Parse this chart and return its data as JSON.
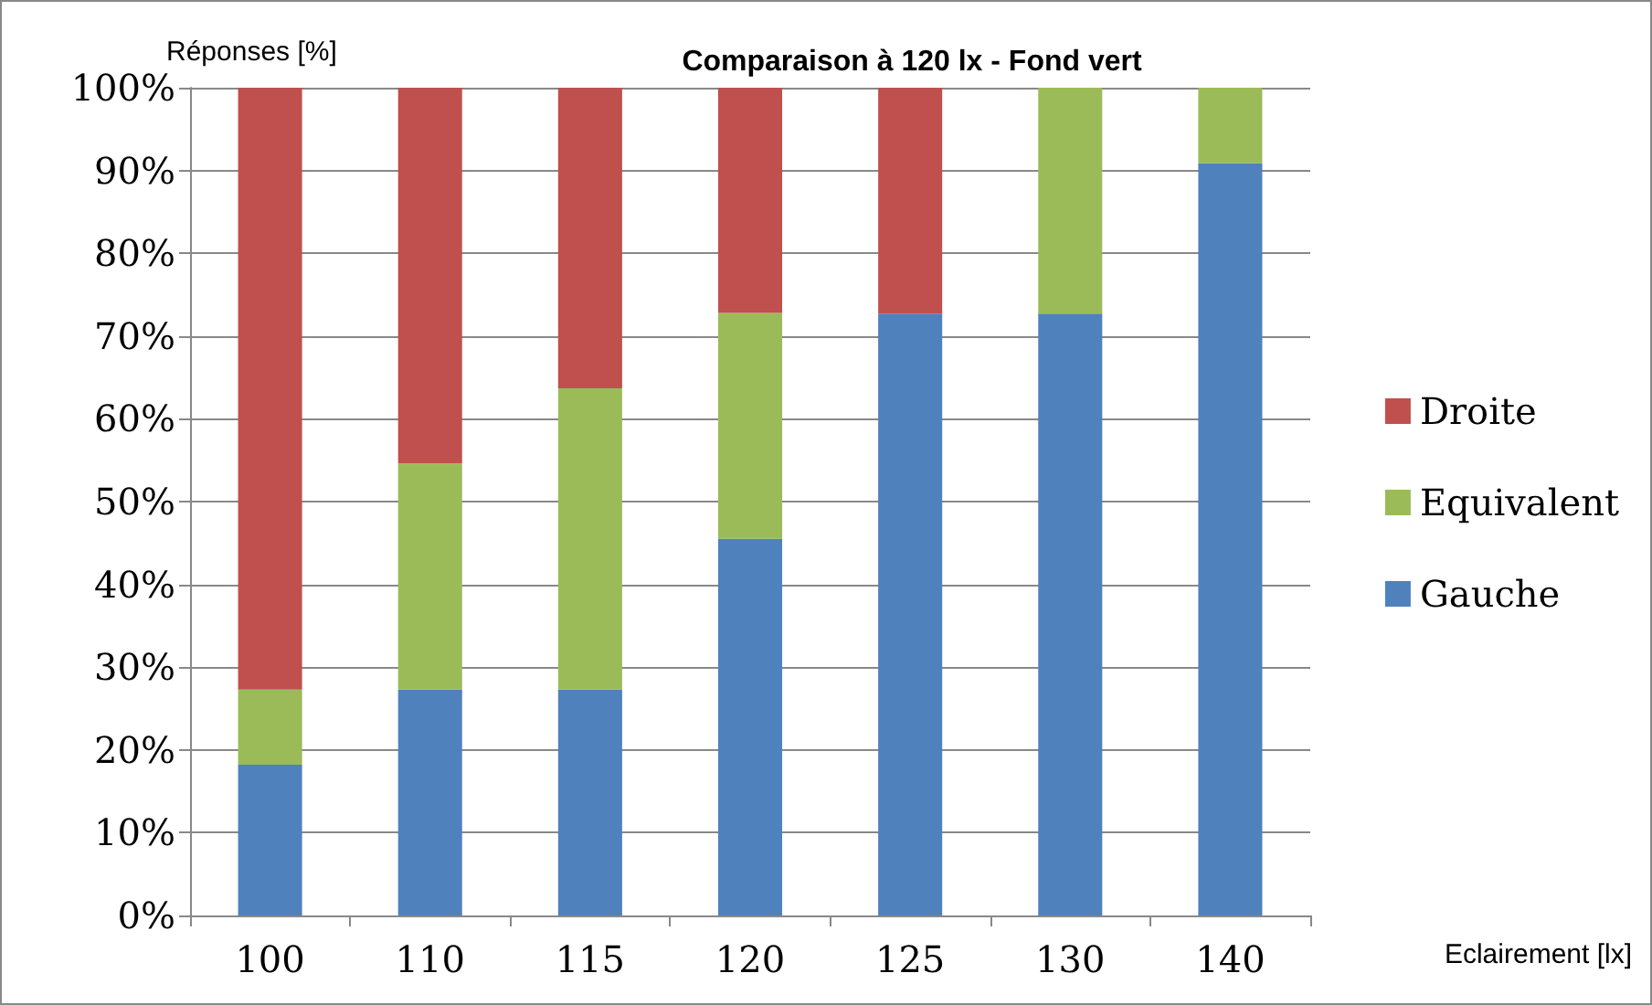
{
  "chart_data": {
    "type": "bar",
    "title": "Comparaison à 120 lx - Fond vert",
    "xlabel": "Eclairement [lx]",
    "ylabel": "Réponses [%]",
    "categories": [
      "100",
      "110",
      "115",
      "120",
      "125",
      "130",
      "140"
    ],
    "stacked": true,
    "series": [
      {
        "name": "Gauche",
        "color": "#4f81bd",
        "values": [
          18.2,
          27.3,
          27.3,
          45.5,
          72.7,
          72.7,
          90.9
        ]
      },
      {
        "name": "Equivalent",
        "color": "#9bbb59",
        "values": [
          9.1,
          27.3,
          36.4,
          27.3,
          0,
          27.3,
          9.1
        ]
      },
      {
        "name": "Droite",
        "color": "#c0504d",
        "values": [
          72.7,
          45.5,
          36.4,
          27.3,
          27.3,
          0,
          0
        ]
      }
    ],
    "ylim": [
      0,
      100
    ],
    "yticks": [
      {
        "value": 0,
        "label": "0%"
      },
      {
        "value": 10,
        "label": "10%"
      },
      {
        "value": 20,
        "label": "20%"
      },
      {
        "value": 30,
        "label": "30%"
      },
      {
        "value": 40,
        "label": "40%"
      },
      {
        "value": 50,
        "label": "50%"
      },
      {
        "value": 60,
        "label": "60%"
      },
      {
        "value": 70,
        "label": "70%"
      },
      {
        "value": 80,
        "label": "80%"
      },
      {
        "value": 90,
        "label": "90%"
      },
      {
        "value": 100,
        "label": "100%"
      }
    ],
    "grid": "y",
    "legend": "right"
  }
}
